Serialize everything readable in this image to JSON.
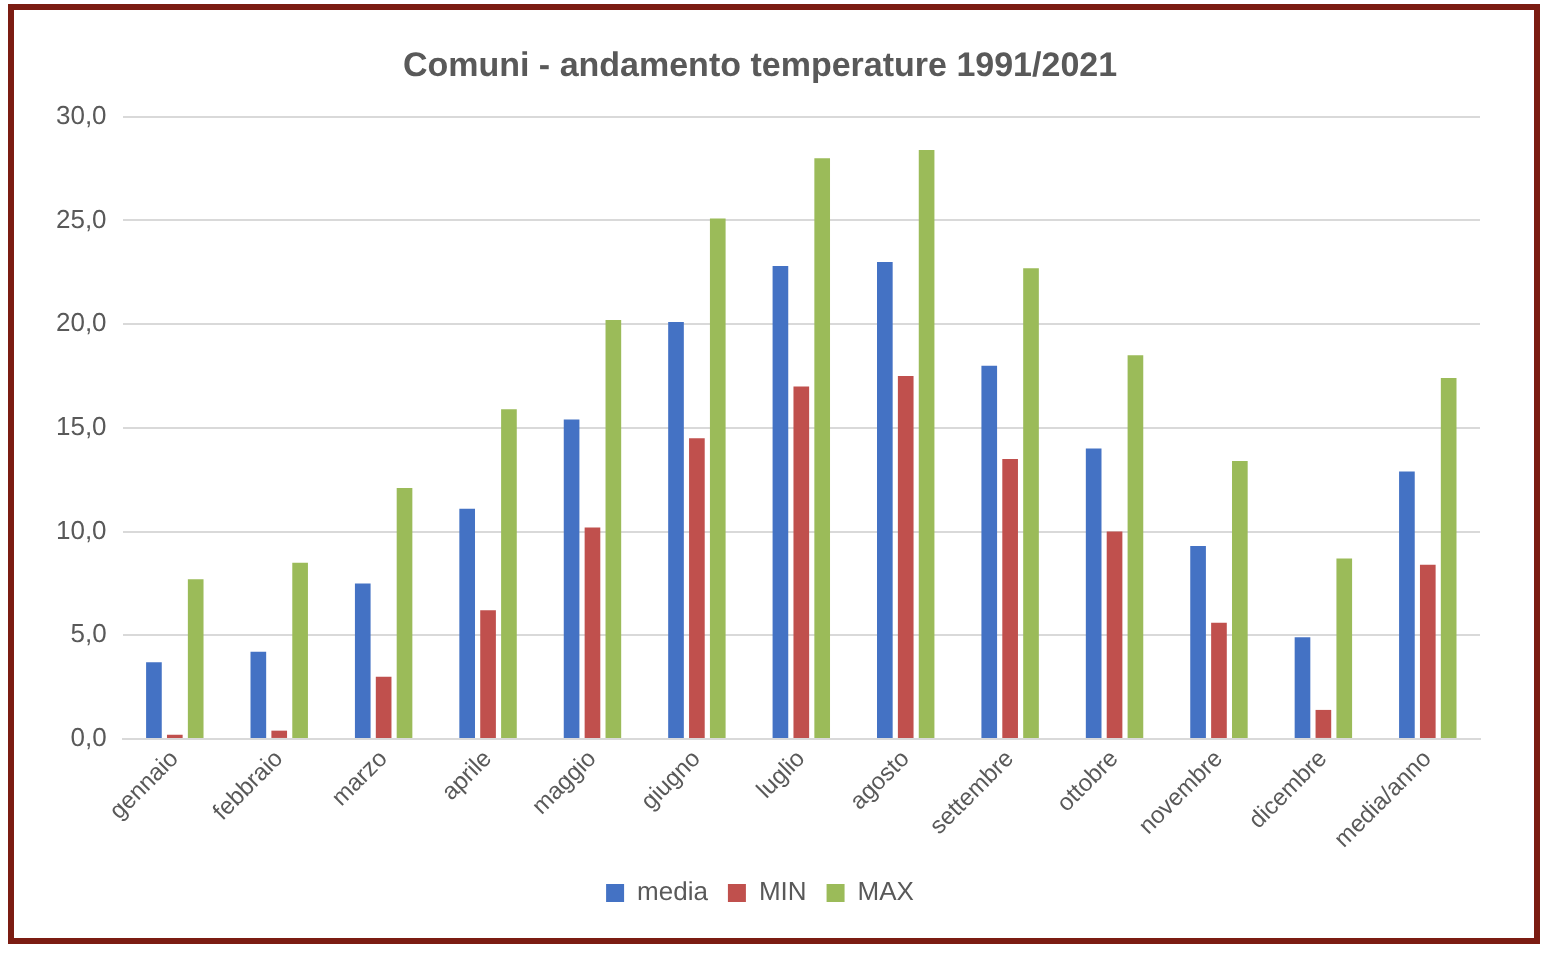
{
  "chart_data": {
    "type": "bar",
    "title": "Comuni - andamento temperature 1991/2021",
    "categories": [
      "gennaio",
      "febbraio",
      "marzo",
      "aprile",
      "maggio",
      "giugno",
      "luglio",
      "agosto",
      "settembre",
      "ottobre",
      "novembre",
      "dicembre",
      "media/anno"
    ],
    "series": [
      {
        "name": "media",
        "color": "#4472c4",
        "values": [
          3.7,
          4.2,
          7.5,
          11.1,
          15.4,
          20.1,
          22.8,
          23.0,
          18.0,
          14.0,
          9.3,
          4.9,
          12.9
        ]
      },
      {
        "name": "MIN",
        "color": "#c0504d",
        "values": [
          0.2,
          0.4,
          3.0,
          6.2,
          10.2,
          14.5,
          17.0,
          17.5,
          13.5,
          10.0,
          5.6,
          1.4,
          8.4
        ]
      },
      {
        "name": "MAX",
        "color": "#9bbb59",
        "values": [
          7.7,
          8.5,
          12.1,
          15.9,
          20.2,
          25.1,
          28.0,
          28.4,
          22.7,
          18.5,
          13.4,
          8.7,
          17.4
        ]
      }
    ],
    "ylim": [
      0,
      30
    ],
    "yticks": [
      {
        "value": 0,
        "label": "0,0"
      },
      {
        "value": 5,
        "label": "5,0"
      },
      {
        "value": 10,
        "label": "10,0"
      },
      {
        "value": 15,
        "label": "15,0"
      },
      {
        "value": 20,
        "label": "20,0"
      },
      {
        "value": 25,
        "label": "25,0"
      },
      {
        "value": 30,
        "label": "30,0"
      }
    ],
    "grid": "y",
    "legend": "bottom"
  }
}
